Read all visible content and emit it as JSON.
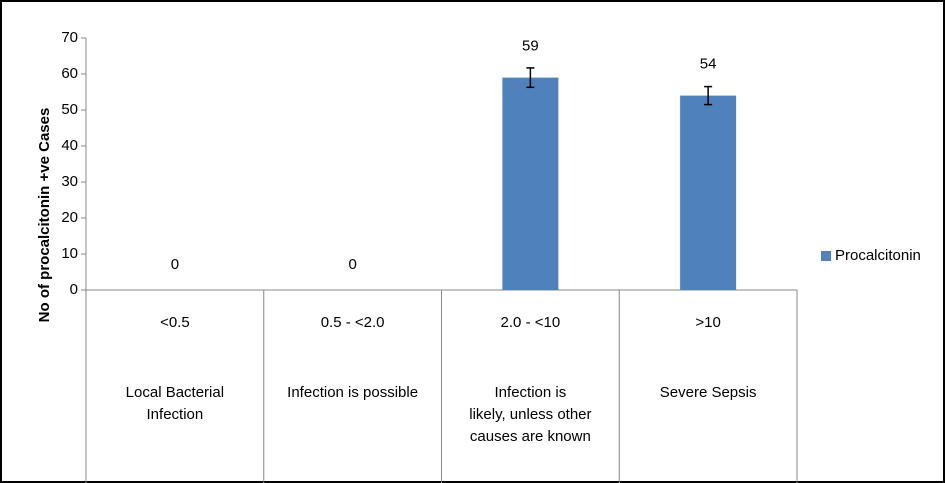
{
  "chart_data": {
    "type": "bar",
    "y_axis_label": "No of procalcitonin +ve Cases",
    "categories": [
      "<0.5",
      "0.5 - <2.0",
      "2.0 - <10",
      ">10"
    ],
    "category_descriptions": [
      [
        "Local Bacterial",
        "Infection"
      ],
      [
        "Infection is possible"
      ],
      [
        "Infection is",
        "likely,  unless other",
        "causes are known"
      ],
      [
        "Severe Sepsis"
      ]
    ],
    "series": [
      {
        "name": "Procalcitonin",
        "color": "#4f81bd",
        "values": [
          0,
          0,
          59,
          54
        ],
        "errors": [
          null,
          null,
          2.7,
          2.5
        ]
      }
    ],
    "ylim": [
      0,
      70
    ],
    "yticks": [
      0,
      10,
      20,
      30,
      40,
      50,
      60,
      70
    ],
    "legend": "right",
    "grid": false
  }
}
